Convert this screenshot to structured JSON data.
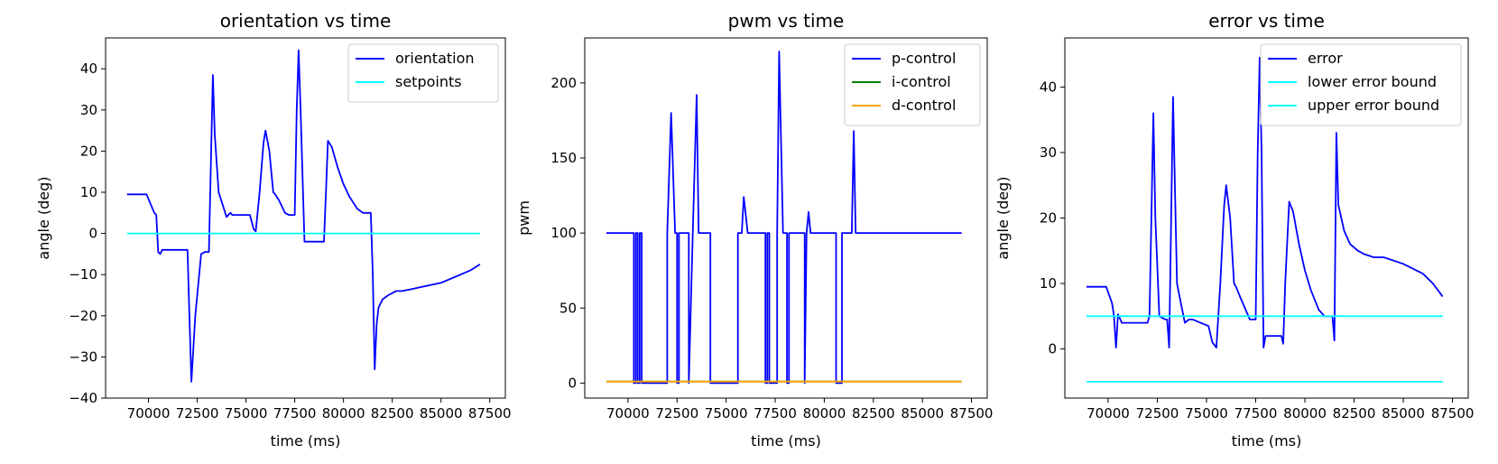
{
  "colors": {
    "blue": "#0000ff",
    "cyan": "#00ffff",
    "green": "#008000",
    "orange": "#ffa500"
  },
  "chart_data": [
    {
      "type": "line",
      "title": "orientation vs time",
      "xlabel": "time (ms)",
      "ylabel": "angle (deg)",
      "xlim": [
        67800,
        88300
      ],
      "ylim": [
        -40,
        47.5
      ],
      "xticks": [
        70000,
        72500,
        75000,
        77500,
        80000,
        82500,
        85000,
        87500
      ],
      "xtick_labels": [
        "70000",
        "72500",
        "75000",
        "77500",
        "80000",
        "82500",
        "85000",
        "87500"
      ],
      "yticks": [
        -40,
        -30,
        -20,
        -10,
        0,
        10,
        20,
        30,
        40
      ],
      "ytick_labels": [
        "−40",
        "−30",
        "−20",
        "−10",
        "0",
        "10",
        "20",
        "30",
        "40"
      ],
      "legend": "top-right",
      "series": [
        {
          "name": "orientation",
          "color": "#0000ff",
          "x": [
            68900,
            69900,
            70300,
            70400,
            70500,
            70600,
            70700,
            71000,
            72000,
            72100,
            72200,
            72400,
            72700,
            72900,
            73100,
            73300,
            73400,
            73600,
            73800,
            74000,
            74200,
            74300,
            74400,
            75200,
            75400,
            75500,
            75700,
            75900,
            76000,
            76200,
            76400,
            76500,
            76700,
            77000,
            77200,
            77500,
            77600,
            77700,
            77800,
            78000,
            78100,
            79000,
            79100,
            79200,
            79400,
            79700,
            80000,
            80300,
            80700,
            81000,
            81400,
            81500,
            81600,
            81700,
            81800,
            82000,
            82300,
            82700,
            83000,
            83500,
            84000,
            85000,
            86000,
            86500,
            87000
          ],
          "y": [
            9.5,
            9.5,
            5,
            4.5,
            -4.5,
            -5,
            -4,
            -4,
            -4,
            -20,
            -36,
            -20,
            -5,
            -4.5,
            -4.5,
            38.5,
            24,
            10,
            7,
            4,
            5,
            4.5,
            4.5,
            4.5,
            1,
            0.5,
            10,
            22,
            25,
            20,
            10,
            9.5,
            8,
            5,
            4.5,
            4.5,
            30,
            44.5,
            30,
            -2,
            -2,
            -2,
            10,
            22.5,
            21,
            16,
            12,
            9,
            6,
            5,
            5,
            -10,
            -33,
            -22,
            -18,
            -16,
            -15,
            -14,
            -14,
            -13.5,
            -13,
            -12,
            -10,
            -9,
            -7.5
          ]
        },
        {
          "name": "setpoints",
          "color": "#00ffff",
          "x": [
            68900,
            87000
          ],
          "y": [
            0,
            0
          ]
        }
      ]
    },
    {
      "type": "line",
      "title": "pwm vs time",
      "xlabel": "time (ms)",
      "ylabel": "pwm",
      "xlim": [
        67800,
        88300
      ],
      "ylim": [
        -10,
        230
      ],
      "xticks": [
        70000,
        72500,
        75000,
        77500,
        80000,
        82500,
        85000,
        87500
      ],
      "xtick_labels": [
        "70000",
        "72500",
        "75000",
        "77500",
        "80000",
        "82500",
        "85000",
        "87500"
      ],
      "yticks": [
        0,
        50,
        100,
        150,
        200
      ],
      "ytick_labels": [
        "0",
        "50",
        "100",
        "150",
        "200"
      ],
      "legend": "top-right",
      "series": [
        {
          "name": "p-control",
          "color": "#0000ff",
          "x": [
            68900,
            70300,
            70300,
            70400,
            70400,
            70500,
            70500,
            70600,
            70600,
            70700,
            70700,
            72000,
            72000,
            72200,
            72400,
            72500,
            72500,
            72600,
            72600,
            73100,
            73100,
            73300,
            73500,
            73600,
            73600,
            74200,
            74200,
            75600,
            75600,
            75800,
            75900,
            76100,
            76300,
            77000,
            77000,
            77100,
            77100,
            77200,
            77200,
            77600,
            77600,
            77700,
            77900,
            78100,
            78100,
            78200,
            78200,
            79000,
            79000,
            79100,
            79200,
            79300,
            79400,
            80600,
            80600,
            80900,
            80900,
            81400,
            81500,
            81600,
            81700,
            87000
          ],
          "y": [
            100,
            100,
            0,
            0,
            100,
            100,
            0,
            0,
            100,
            100,
            0,
            0,
            100,
            180,
            100,
            100,
            0,
            0,
            100,
            100,
            0,
            100,
            192,
            100,
            100,
            100,
            0,
            0,
            100,
            100,
            124,
            100,
            100,
            100,
            0,
            0,
            100,
            100,
            0,
            0,
            100,
            221,
            100,
            100,
            0,
            0,
            100,
            100,
            0,
            100,
            114,
            100,
            100,
            100,
            0,
            0,
            100,
            100,
            168,
            100,
            100,
            100
          ]
        },
        {
          "name": "i-control",
          "color": "#008000",
          "x": [
            68900,
            87000
          ],
          "y": [
            1,
            1
          ]
        },
        {
          "name": "d-control",
          "color": "#ffa500",
          "x": [
            68900,
            87000
          ],
          "y": [
            1,
            1
          ]
        }
      ]
    },
    {
      "type": "line",
      "title": "error vs time",
      "xlabel": "time (ms)",
      "ylabel": "angle (deg)",
      "xlim": [
        67800,
        88300
      ],
      "ylim": [
        -7.5,
        47.5
      ],
      "xticks": [
        70000,
        72500,
        75000,
        77500,
        80000,
        82500,
        85000,
        87500
      ],
      "xtick_labels": [
        "70000",
        "72500",
        "75000",
        "77500",
        "80000",
        "82500",
        "85000",
        "87500"
      ],
      "yticks": [
        0,
        10,
        20,
        30,
        40
      ],
      "ytick_labels": [
        "0",
        "10",
        "20",
        "30",
        "40"
      ],
      "legend": "top-right",
      "series": [
        {
          "name": "error",
          "color": "#0000ff",
          "x": [
            68900,
            69900,
            70200,
            70300,
            70400,
            70500,
            70700,
            72000,
            72100,
            72200,
            72300,
            72400,
            72600,
            72900,
            73000,
            73100,
            73300,
            73400,
            73500,
            73700,
            73900,
            74100,
            74200,
            74300,
            75100,
            75300,
            75500,
            75700,
            75900,
            76000,
            76200,
            76400,
            76500,
            76700,
            77200,
            77500,
            77600,
            77700,
            77800,
            77900,
            78000,
            78100,
            78800,
            78900,
            79000,
            79200,
            79400,
            79700,
            80000,
            80300,
            80700,
            81000,
            81400,
            81500,
            81600,
            81700,
            82000,
            82300,
            82700,
            83000,
            83500,
            84000,
            85000,
            86000,
            86500,
            87000
          ],
          "y": [
            9.5,
            9.5,
            7,
            5,
            0.2,
            5.3,
            4,
            4,
            5,
            20,
            36,
            20,
            5,
            4.5,
            4.5,
            0.2,
            38.5,
            24,
            10,
            7,
            4,
            4.5,
            4.5,
            4.5,
            3.5,
            1,
            0.2,
            10,
            22,
            25,
            20,
            10,
            9.5,
            8,
            4.5,
            4.5,
            30,
            44.5,
            30,
            0.2,
            2,
            2,
            2,
            0.8,
            10,
            22.5,
            21,
            16,
            12,
            9,
            6,
            5,
            5,
            1.3,
            33,
            22,
            18,
            16,
            15,
            14.5,
            14,
            14,
            13,
            11.5,
            10,
            8
          ]
        },
        {
          "name": "lower error bound",
          "color": "#00ffff",
          "x": [
            68900,
            87000
          ],
          "y": [
            5,
            5
          ]
        },
        {
          "name": "upper error bound",
          "color": "#00ffff",
          "x": [
            68900,
            87000
          ],
          "y": [
            -5,
            -5
          ]
        }
      ]
    }
  ]
}
